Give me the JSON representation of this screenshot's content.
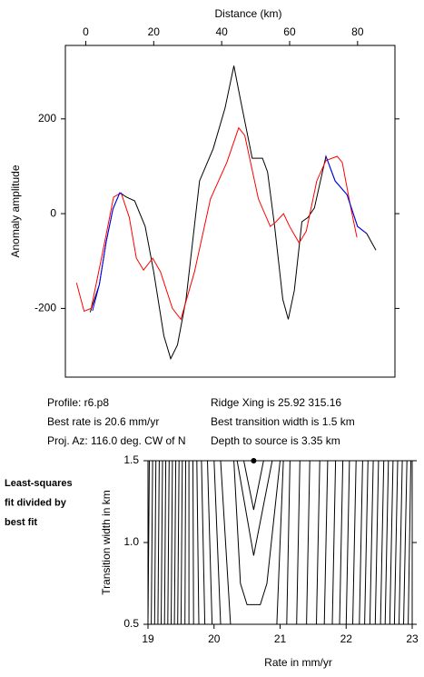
{
  "chart_data": [
    {
      "type": "line",
      "xlabel": "Distance (km)",
      "ylabel": "Anomaly amplitude",
      "xlim": [
        -6,
        91
      ],
      "xticks": [
        0,
        20,
        40,
        60,
        80
      ],
      "ylim": [
        -345,
        355
      ],
      "yticks": [
        -200,
        0,
        200
      ],
      "series": [
        {
          "color": "#000000",
          "x": [
            1.3,
            4,
            6,
            8,
            10,
            12,
            14.4,
            17.5,
            20,
            23,
            25,
            27,
            29.5,
            33.5,
            37.5,
            41,
            43.6,
            45.5,
            49,
            52,
            53.5,
            55.6,
            58,
            59.6,
            61.4,
            63.6,
            65.4,
            67.3,
            70.7,
            73.4,
            76.9,
            80,
            82.7,
            85.4
          ],
          "values": [
            -208,
            -150,
            -60,
            10,
            44,
            35,
            27,
            -27,
            -123,
            -258,
            -306,
            -277,
            -181,
            69,
            137,
            223,
            312,
            242,
            117,
            117,
            88,
            -27,
            -181,
            -223,
            -162,
            -17,
            -8,
            12,
            121,
            69,
            40,
            -27,
            -42,
            -77
          ]
        },
        {
          "color": "#ff0000",
          "x": [
            -2.7,
            -0.5,
            1.6,
            4.8,
            8.2,
            10.4,
            12.8,
            14.9,
            17,
            19.7,
            22,
            25.5,
            28,
            32,
            36.7,
            41.5,
            45,
            46.8,
            50.8,
            54.3,
            56,
            58.2,
            60,
            62.8,
            64.9,
            68,
            70.7,
            74,
            75.5,
            78,
            79.8
          ],
          "values": [
            -146,
            -206,
            -200,
            -88,
            35,
            44,
            -8,
            -94,
            -119,
            -94,
            -123,
            -200,
            -223,
            -123,
            31,
            108,
            181,
            165,
            31,
            -27,
            -17,
            0,
            -27,
            -62,
            -37,
            69,
            112,
            121,
            108,
            12,
            -50
          ]
        },
        {
          "color": "#0000ff",
          "x": [
            2,
            4,
            6,
            8,
            10,
            11,
            68,
            70.7,
            73.4,
            76.9,
            80,
            82.7
          ],
          "values": [
            -205,
            -150,
            -60,
            10,
            44,
            40,
            null,
            121,
            69,
            40,
            -27,
            -42
          ]
        }
      ],
      "annotations": [
        "Profile: r6.p8",
        "Best rate is 20.6 mm/yr",
        "Proj. Az: 116.0 deg. CW of N",
        "Ridge Xing is 25.92 315.16",
        "Best transition width is 1.5 km",
        "Depth to source is   3.35 km"
      ]
    },
    {
      "type": "contour",
      "xlabel": "Rate in mm/yr",
      "ylabel": "Transition width in km",
      "xlim": [
        19,
        23
      ],
      "xticks": [
        19,
        20,
        21,
        22,
        23
      ],
      "ylim": [
        0.5,
        1.5
      ],
      "yticks": [
        0.5,
        {
          "value": 1,
          "label": "1.0"
        },
        1.5
      ],
      "side_label": [
        "Least-squares",
        "fit divided by",
        "best fit"
      ],
      "best_fit": {
        "x": 20.6,
        "y": 1.5
      },
      "color": "#000000",
      "contours": [
        {
          "x": [
            20.45,
            20.6,
            20.75
          ],
          "y": [
            1.5,
            1.2,
            1.5
          ]
        },
        {
          "x": [
            20.35,
            20.6,
            20.88
          ],
          "y": [
            1.5,
            0.92,
            1.5
          ]
        },
        {
          "x": [
            20.3,
            20.4,
            20.5,
            20.7,
            20.8,
            21.0
          ],
          "y": [
            1.5,
            0.75,
            0.62,
            0.62,
            0.75,
            1.5
          ]
        },
        {
          "x": [
            20.1,
            20.25
          ],
          "y": [
            1.5,
            0.5
          ]
        },
        {
          "x": [
            21.05,
            20.95
          ],
          "y": [
            1.5,
            0.5
          ]
        },
        {
          "x": [
            20.0,
            20.1
          ],
          "y": [
            1.5,
            0.5
          ]
        },
        {
          "x": [
            21.15,
            21.1
          ],
          "y": [
            1.5,
            0.5
          ]
        },
        {
          "x": [
            19.02,
            19.0
          ],
          "y": [
            1.5,
            0.5
          ]
        },
        {
          "x": [
            19.07,
            19.05
          ],
          "y": [
            1.5,
            0.5
          ]
        },
        {
          "x": [
            19.12,
            19.1
          ],
          "y": [
            1.5,
            0.5
          ]
        },
        {
          "x": [
            19.17,
            19.15
          ],
          "y": [
            1.5,
            0.5
          ]
        },
        {
          "x": [
            19.22,
            19.2
          ],
          "y": [
            1.5,
            0.5
          ]
        },
        {
          "x": [
            19.27,
            19.25
          ],
          "y": [
            1.5,
            0.5
          ]
        },
        {
          "x": [
            19.32,
            19.3
          ],
          "y": [
            1.5,
            0.5
          ]
        },
        {
          "x": [
            19.37,
            19.35
          ],
          "y": [
            1.5,
            0.5
          ]
        },
        {
          "x": [
            19.42,
            19.4
          ],
          "y": [
            1.5,
            0.5
          ]
        },
        {
          "x": [
            19.47,
            19.45
          ],
          "y": [
            1.5,
            0.5
          ]
        },
        {
          "x": [
            19.52,
            19.5
          ],
          "y": [
            1.5,
            0.5
          ]
        },
        {
          "x": [
            19.57,
            19.56
          ],
          "y": [
            1.5,
            0.5
          ]
        },
        {
          "x": [
            19.62,
            19.62
          ],
          "y": [
            1.5,
            0.5
          ]
        },
        {
          "x": [
            19.68,
            19.69
          ],
          "y": [
            1.5,
            0.5
          ]
        },
        {
          "x": [
            19.74,
            19.77
          ],
          "y": [
            1.5,
            0.5
          ]
        },
        {
          "x": [
            19.81,
            19.86
          ],
          "y": [
            1.5,
            0.5
          ]
        },
        {
          "x": [
            19.9,
            19.97
          ],
          "y": [
            1.5,
            0.5
          ]
        },
        {
          "x": [
            21.3,
            21.25
          ],
          "y": [
            1.5,
            0.5
          ]
        },
        {
          "x": [
            21.45,
            21.4
          ],
          "y": [
            1.5,
            0.5
          ]
        },
        {
          "x": [
            21.6,
            21.55
          ],
          "y": [
            1.5,
            0.5
          ]
        },
        {
          "x": [
            21.72,
            21.67
          ],
          "y": [
            1.5,
            0.5
          ]
        },
        {
          "x": [
            21.84,
            21.79
          ],
          "y": [
            1.5,
            0.5
          ]
        },
        {
          "x": [
            21.95,
            21.9
          ],
          "y": [
            1.5,
            0.5
          ]
        },
        {
          "x": [
            22.05,
            22.0
          ],
          "y": [
            1.5,
            0.5
          ]
        },
        {
          "x": [
            22.15,
            22.1
          ],
          "y": [
            1.5,
            0.5
          ]
        },
        {
          "x": [
            22.25,
            22.2
          ],
          "y": [
            1.5,
            0.5
          ]
        },
        {
          "x": [
            22.33,
            22.28
          ],
          "y": [
            1.5,
            0.5
          ]
        },
        {
          "x": [
            22.41,
            22.36
          ],
          "y": [
            1.5,
            0.5
          ]
        },
        {
          "x": [
            22.49,
            22.44
          ],
          "y": [
            1.5,
            0.5
          ]
        },
        {
          "x": [
            22.57,
            22.52
          ],
          "y": [
            1.5,
            0.5
          ]
        },
        {
          "x": [
            22.64,
            22.59
          ],
          "y": [
            1.5,
            0.5
          ]
        },
        {
          "x": [
            22.71,
            22.66
          ],
          "y": [
            1.5,
            0.5
          ]
        },
        {
          "x": [
            22.78,
            22.73
          ],
          "y": [
            1.5,
            0.5
          ]
        },
        {
          "x": [
            22.85,
            22.8
          ],
          "y": [
            1.5,
            0.5
          ]
        },
        {
          "x": [
            22.92,
            22.87
          ],
          "y": [
            1.5,
            0.5
          ]
        },
        {
          "x": [
            22.98,
            22.94
          ],
          "y": [
            1.5,
            0.5
          ]
        }
      ]
    }
  ]
}
